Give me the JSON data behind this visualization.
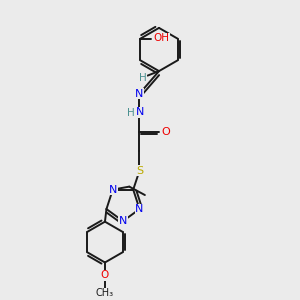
{
  "background_color": "#ebebeb",
  "atoms": {
    "colors": {
      "C": "#1a1a1a",
      "N": "#0000ee",
      "O": "#ee0000",
      "S": "#bbaa00",
      "H": "#4a9090"
    }
  },
  "bond_color": "#1a1a1a"
}
